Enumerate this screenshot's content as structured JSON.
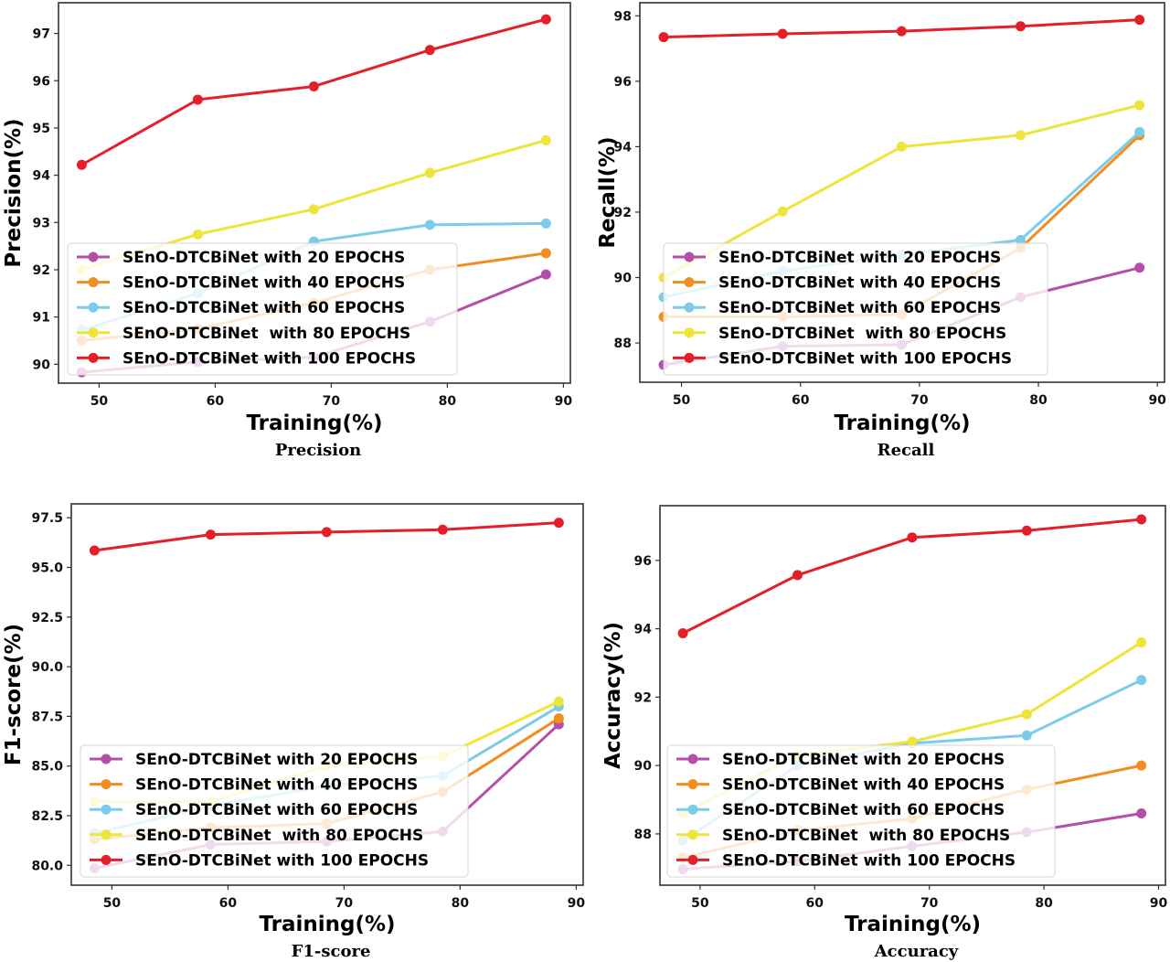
{
  "chart_data": [
    {
      "type": "line",
      "caption": "Precision",
      "xlabel": "Training(%)",
      "ylabel": "Precision(%)",
      "x": [
        48.5,
        58.5,
        68.5,
        78.5,
        88.5
      ],
      "xticks": [
        50,
        60,
        70,
        80,
        90
      ],
      "yticks": [
        90,
        91,
        92,
        93,
        94,
        95,
        96,
        97
      ],
      "xlim": [
        46.5,
        90.6
      ],
      "ylim": [
        89.6,
        97.65
      ],
      "legend_position": "lower-left",
      "series": [
        {
          "name": "SEnO-DTCBiNet with 20 EPOCHS",
          "color": "#b44ea8",
          "values": [
            89.83,
            90.05,
            90.15,
            90.9,
            91.9
          ]
        },
        {
          "name": "SEnO-DTCBiNet with 40 EPOCHS",
          "color": "#f28d1f",
          "values": [
            90.5,
            90.75,
            91.3,
            92.0,
            92.35
          ]
        },
        {
          "name": "SEnO-DTCBiNet with 60 EPOCHS",
          "color": "#7dcbea",
          "values": [
            90.72,
            91.5,
            92.6,
            92.95,
            92.98
          ]
        },
        {
          "name": "SEnO-DTCBiNet  with 80 EPOCHS",
          "color": "#eee43a",
          "values": [
            92.0,
            92.75,
            93.28,
            94.05,
            94.74
          ]
        },
        {
          "name": "SEnO-DTCBiNet with 100 EPOCHS",
          "color": "#e3202a",
          "values": [
            94.22,
            95.6,
            95.88,
            96.65,
            97.3
          ]
        }
      ]
    },
    {
      "type": "line",
      "caption": "Recall",
      "xlabel": "Training(%)",
      "ylabel": "Recall(%)",
      "x": [
        48.5,
        58.5,
        68.5,
        78.5,
        88.5
      ],
      "xticks": [
        50,
        60,
        70,
        80,
        90
      ],
      "yticks": [
        88,
        90,
        92,
        94,
        96,
        98
      ],
      "xlim": [
        46.5,
        90.6
      ],
      "ylim": [
        86.8,
        98.4
      ],
      "legend_position": "lower-left",
      "series": [
        {
          "name": "SEnO-DTCBiNet with 20 EPOCHS",
          "color": "#b44ea8",
          "values": [
            87.33,
            87.9,
            87.95,
            89.4,
            90.3
          ]
        },
        {
          "name": "SEnO-DTCBiNet with 40 EPOCHS",
          "color": "#f28d1f",
          "values": [
            88.8,
            88.8,
            88.87,
            90.9,
            94.35
          ]
        },
        {
          "name": "SEnO-DTCBiNet with 60 EPOCHS",
          "color": "#7dcbea",
          "values": [
            89.4,
            90.2,
            90.7,
            91.15,
            94.45
          ]
        },
        {
          "name": "SEnO-DTCBiNet  with 80 EPOCHS",
          "color": "#eee43a",
          "values": [
            90.0,
            92.02,
            94.0,
            94.35,
            95.27
          ]
        },
        {
          "name": "SEnO-DTCBiNet with 100 EPOCHS",
          "color": "#e3202a",
          "values": [
            97.35,
            97.45,
            97.53,
            97.68,
            97.88
          ]
        }
      ]
    },
    {
      "type": "line",
      "caption": "F1-score",
      "xlabel": "Training(%)",
      "ylabel": "F1-score(%)",
      "x": [
        48.5,
        58.5,
        68.5,
        78.5,
        88.5
      ],
      "xticks": [
        50,
        60,
        70,
        80,
        90
      ],
      "yticks": [
        80.0,
        82.5,
        85.0,
        87.5,
        90.0,
        92.5,
        95.0,
        97.5
      ],
      "ytick_labels": [
        "80.0",
        "82.5",
        "85.0",
        "87.5",
        "90.0",
        "92.5",
        "95.0",
        "97.5"
      ],
      "xlim": [
        46.5,
        90.6
      ],
      "ylim": [
        79.0,
        98.2
      ],
      "legend_position": "lower-left",
      "series": [
        {
          "name": "SEnO-DTCBiNet with 20 EPOCHS",
          "color": "#b44ea8",
          "values": [
            79.85,
            81.05,
            81.2,
            81.7,
            87.1
          ]
        },
        {
          "name": "SEnO-DTCBiNet with 40 EPOCHS",
          "color": "#f28d1f",
          "values": [
            81.3,
            81.9,
            82.1,
            83.7,
            87.4
          ]
        },
        {
          "name": "SEnO-DTCBiNet with 60 EPOCHS",
          "color": "#7dcbea",
          "values": [
            81.6,
            83.0,
            84.0,
            84.5,
            88.0
          ]
        },
        {
          "name": "SEnO-DTCBiNet  with 80 EPOCHS",
          "color": "#eee43a",
          "values": [
            83.2,
            83.2,
            85.0,
            85.5,
            88.25
          ]
        },
        {
          "name": "SEnO-DTCBiNet with 100 EPOCHS",
          "color": "#e3202a",
          "values": [
            95.85,
            96.65,
            96.78,
            96.9,
            97.25
          ]
        }
      ]
    },
    {
      "type": "line",
      "caption": "Accuracy",
      "xlabel": "Training(%)",
      "ylabel": "Accuracy(%)",
      "x": [
        48.5,
        58.5,
        68.5,
        78.5,
        88.5
      ],
      "xticks": [
        50,
        60,
        70,
        80,
        90
      ],
      "yticks": [
        88,
        90,
        92,
        94,
        96
      ],
      "xlim": [
        46.5,
        90.6
      ],
      "ylim": [
        86.5,
        97.6
      ],
      "legend_position": "lower-left",
      "series": [
        {
          "name": "SEnO-DTCBiNet with 20 EPOCHS",
          "color": "#b44ea8",
          "values": [
            86.97,
            87.2,
            87.64,
            88.05,
            88.6
          ]
        },
        {
          "name": "SEnO-DTCBiNet with 40 EPOCHS",
          "color": "#f28d1f",
          "values": [
            87.3,
            88.1,
            88.45,
            89.3,
            90.0
          ]
        },
        {
          "name": "SEnO-DTCBiNet with 60 EPOCHS",
          "color": "#7dcbea",
          "values": [
            87.8,
            90.0,
            90.65,
            90.88,
            92.5
          ]
        },
        {
          "name": "SEnO-DTCBiNet  with 80 EPOCHS",
          "color": "#eee43a",
          "values": [
            88.6,
            90.3,
            90.7,
            91.5,
            93.6
          ]
        },
        {
          "name": "SEnO-DTCBiNet with 100 EPOCHS",
          "color": "#e3202a",
          "values": [
            93.87,
            95.57,
            96.67,
            96.87,
            97.2
          ]
        }
      ]
    }
  ]
}
